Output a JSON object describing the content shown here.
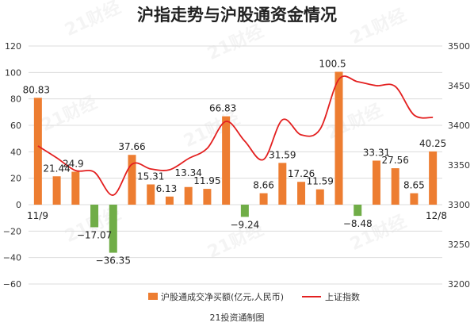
{
  "chart_data": {
    "type": "bar",
    "title": "沪指走势与沪股通资金情况",
    "source": "21投资通制图",
    "watermark": "21财经",
    "colors": {
      "positive": "#ed7d31",
      "negative": "#70ad47",
      "line": "#e32020"
    },
    "y_left": {
      "min": -60,
      "max": 120,
      "ticks": [
        120,
        100,
        80,
        60,
        40,
        20,
        0,
        -20,
        -40,
        -60
      ]
    },
    "y_right": {
      "min": 3200,
      "max": 3500,
      "ticks": [
        3500,
        3450,
        3400,
        3350,
        3300,
        3250,
        3200
      ]
    },
    "x_start_label": "11/9",
    "x_end_label": "12/8",
    "series": [
      {
        "name": "沪股通成交净买额(亿元,人民币)",
        "type": "bar",
        "axis": "left",
        "values": [
          80.83,
          21.44,
          24.9,
          -17.07,
          -36.35,
          37.66,
          15.31,
          6.13,
          13.34,
          11.95,
          66.83,
          -9.24,
          8.66,
          31.59,
          17.26,
          11.59,
          100.5,
          -8.48,
          33.31,
          27.56,
          8.65,
          40.25
        ],
        "labels": [
          "80.83",
          "21.44",
          "24.9",
          "−17.07",
          "−36.35",
          "37.66",
          "15.31",
          "6.13",
          "13.34",
          "11.95",
          "66.83",
          "−9.24",
          "8.66",
          "31.59",
          "17.26",
          "11.59",
          "100.5",
          "−8.48",
          "33.31",
          "27.56",
          "8.65",
          "40.25"
        ]
      },
      {
        "name": "上证指数",
        "type": "line",
        "axis": "right",
        "values": [
          3374,
          3359,
          3343,
          3341,
          3312,
          3351,
          3345,
          3344,
          3358,
          3371,
          3405,
          3380,
          3357,
          3407,
          3388,
          3395,
          3458,
          3455,
          3450,
          3449,
          3413,
          3410
        ]
      }
    ]
  }
}
